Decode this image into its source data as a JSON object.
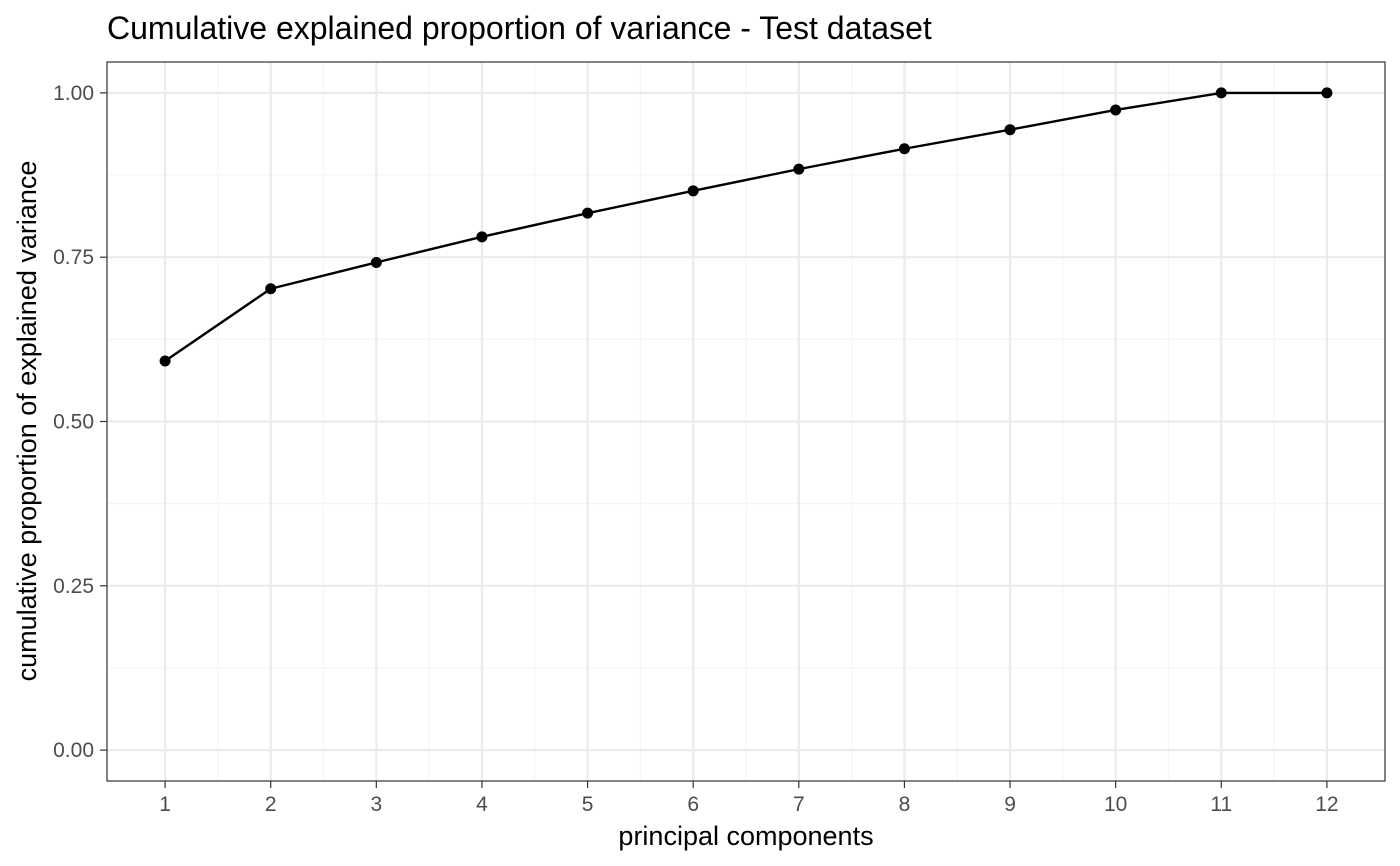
{
  "chart_data": {
    "type": "line",
    "title": "Cumulative explained proportion of variance - Test dataset",
    "xlabel": "principal components",
    "ylabel": "cumulative proportion of explained variance",
    "x": [
      1,
      2,
      3,
      4,
      5,
      6,
      7,
      8,
      9,
      10,
      11,
      12
    ],
    "x_tick_labels": [
      "1",
      "2",
      "3",
      "4",
      "5",
      "6",
      "7",
      "8",
      "9",
      "10",
      "11",
      "12"
    ],
    "series": [
      {
        "values": [
          0.592,
          0.702,
          0.742,
          0.781,
          0.817,
          0.851,
          0.884,
          0.915,
          0.944,
          0.974,
          1.0,
          1.0
        ]
      }
    ],
    "xlim": [
      0.45,
      12.55
    ],
    "ylim": [
      -0.047,
      1.047
    ],
    "y_ticks": [
      0,
      0.25,
      0.5,
      0.75,
      1.0
    ],
    "y_tick_labels": [
      "0.00",
      "0.25",
      "0.50",
      "0.75",
      "1.00"
    ],
    "grid": true,
    "markers": true,
    "colors": {
      "line": "#000000",
      "point": "#000000",
      "grid_major": "#ebebeb",
      "grid_minor": "#f5f5f5",
      "panel_border": "#333333"
    }
  }
}
